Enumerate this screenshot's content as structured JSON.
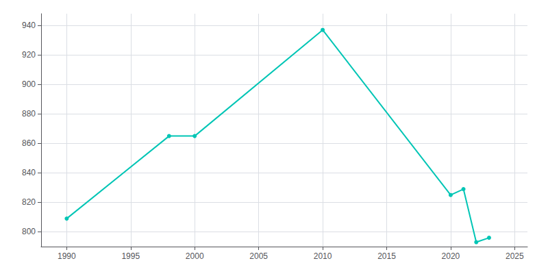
{
  "chart_data": {
    "type": "line",
    "x": [
      1990,
      1998,
      2000,
      2010,
      2020,
      2021,
      2022,
      2023
    ],
    "values": [
      809,
      865,
      865,
      937,
      825,
      829,
      793,
      796
    ],
    "color": "#00C5B5",
    "marker": "circle",
    "xlim": [
      1988,
      2026
    ],
    "ylim": [
      790,
      948
    ],
    "xticks": [
      1990,
      1995,
      2000,
      2005,
      2010,
      2015,
      2020,
      2025
    ],
    "yticks": [
      800,
      820,
      840,
      860,
      880,
      900,
      920,
      940
    ],
    "grid": true
  }
}
